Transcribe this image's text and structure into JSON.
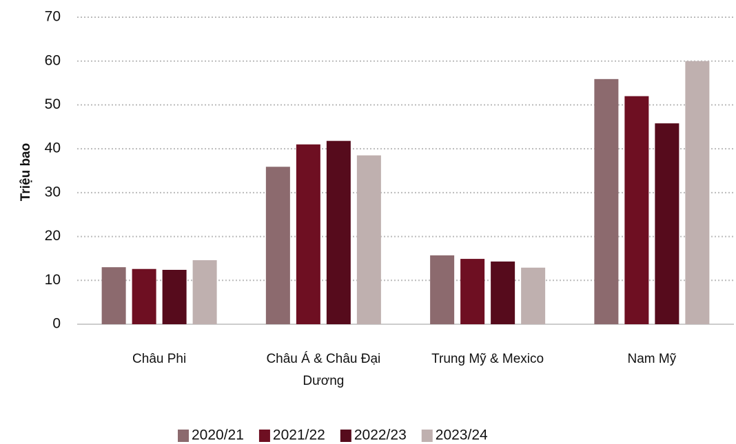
{
  "chart_data": {
    "type": "bar",
    "y_label": "Triệu bao",
    "categories": [
      "Châu Phi",
      "Châu Á & Châu Đại Dương",
      "Trung Mỹ & Mexico",
      "Nam Mỹ"
    ],
    "series": [
      {
        "name": "2020/21",
        "color": "#8c6a6e",
        "values": [
          13.0,
          35.9,
          15.7,
          55.9
        ]
      },
      {
        "name": "2021/22",
        "color": "#6e0f22",
        "values": [
          12.6,
          41.0,
          14.9,
          52.0
        ]
      },
      {
        "name": "2022/23",
        "color": "#560b1c",
        "values": [
          12.4,
          41.8,
          14.3,
          45.8
        ]
      },
      {
        "name": "2023/24",
        "color": "#bfb0af",
        "values": [
          14.6,
          38.5,
          12.9,
          60.0
        ]
      }
    ],
    "ylim": [
      0,
      70
    ],
    "yticks": [
      0,
      10,
      20,
      30,
      40,
      50,
      60,
      70
    ],
    "grid": true
  }
}
